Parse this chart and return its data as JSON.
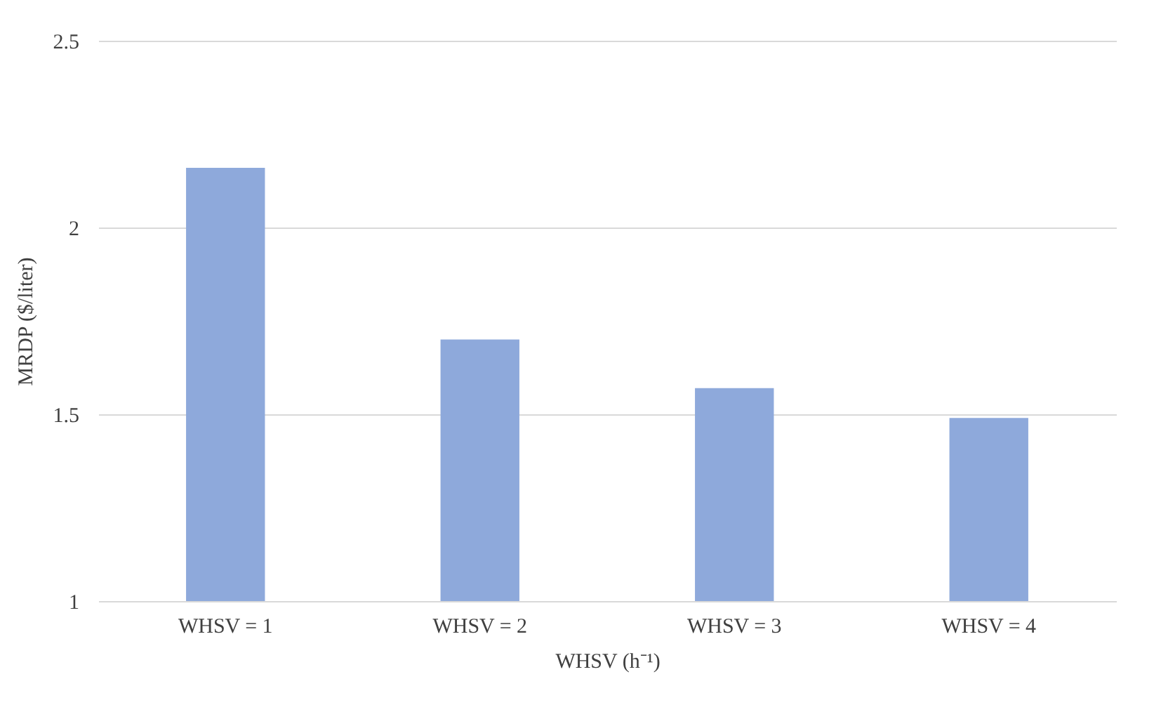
{
  "chart_data": {
    "type": "bar",
    "xlabel": "WHSV (h⁻¹)",
    "ylabel": "MRDP ($/liter)",
    "categories": [
      "WHSV = 1",
      "WHSV = 2",
      "WHSV = 3",
      "WHSV = 4"
    ],
    "values": [
      2.16,
      1.7,
      1.57,
      1.49
    ],
    "color": "#8ea9db",
    "ylim": [
      1,
      2.5
    ],
    "yticks": [
      1,
      1.5,
      2,
      2.5
    ],
    "grid": "y"
  }
}
